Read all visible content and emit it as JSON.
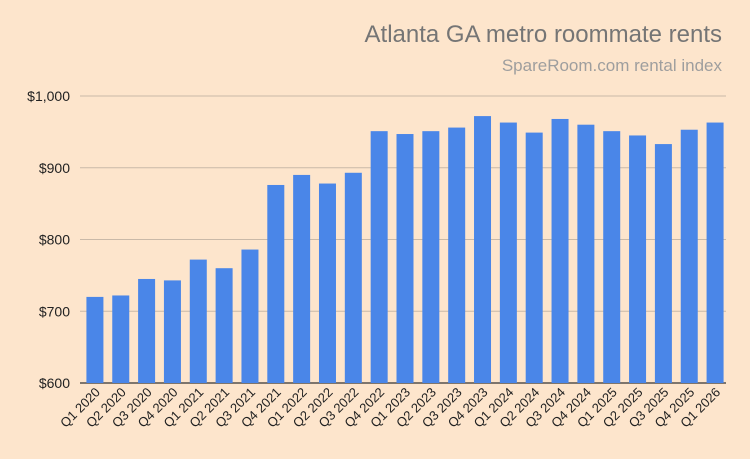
{
  "chart_data": {
    "type": "bar",
    "title": "Atlanta GA metro roommate rents",
    "subtitle": "SpareRoom.com rental index",
    "xlabel": "",
    "ylabel": "",
    "ylim": [
      600,
      1000
    ],
    "yticks": [
      600,
      700,
      800,
      900,
      1000
    ],
    "ytick_labels": [
      "$600",
      "$700",
      "$800",
      "$900",
      "$1,000"
    ],
    "grid": true,
    "legend": "none",
    "bar_color": "#4a86e8",
    "gridline_color": "#c9b9a8",
    "categories": [
      "Q1 2020",
      "Q2 2020",
      "Q3 2020",
      "Q4 2020",
      "Q1 2021",
      "Q2 2021",
      "Q3 2021",
      "Q4 2021",
      "Q1 2022",
      "Q2 2022",
      "Q3 2022",
      "Q4 2022",
      "Q1 2023",
      "Q2 2023",
      "Q3 2023",
      "Q4 2023",
      "Q1 2024",
      "Q2 2024",
      "Q3 2024",
      "Q4 2024",
      "Q1 2025",
      "Q2 2025",
      "Q3 2025",
      "Q4 2025",
      "Q1 2026"
    ],
    "values": [
      720,
      722,
      745,
      743,
      772,
      760,
      786,
      876,
      890,
      878,
      893,
      951,
      947,
      951,
      956,
      972,
      963,
      949,
      968,
      960,
      951,
      945,
      933,
      953,
      963
    ]
  }
}
